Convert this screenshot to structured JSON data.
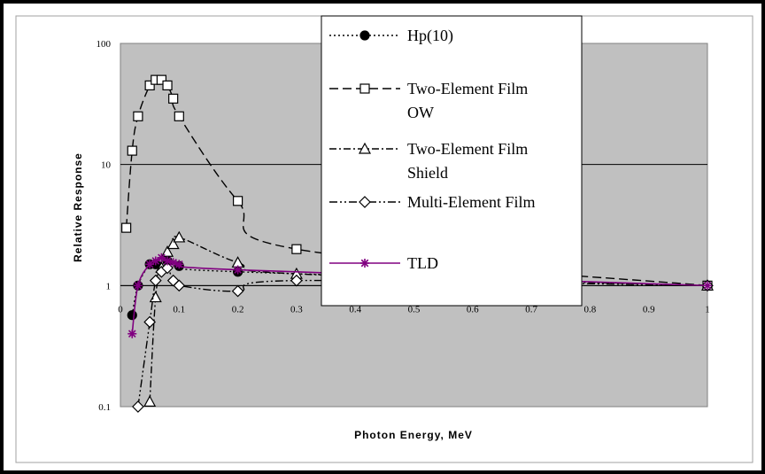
{
  "chart_data": {
    "type": "scatter",
    "xlabel": "Photon Energy, MeV",
    "ylabel": "Relative Response",
    "xlim": [
      0,
      1
    ],
    "ylim": [
      0.1,
      100
    ],
    "yscale": "log",
    "x_ticks": [
      "0",
      "0.1",
      "0.2",
      "0.3",
      "0.4",
      "0.5",
      "0.6",
      "0.7",
      "0.8",
      "0.9",
      "1"
    ],
    "y_ticks": [
      "0.1",
      "1",
      "10",
      "100"
    ],
    "grid": "horizontal major lines",
    "plot_background": "#c0c0c0",
    "legend_position": "top-center (overlapping plot)",
    "series": [
      {
        "name": "Hp(10)",
        "line_style": "dotted",
        "marker": "filled-circle",
        "color": "#000000",
        "x": [
          0.02,
          0.03,
          0.05,
          0.06,
          0.08,
          0.1,
          0.2,
          1.0
        ],
        "y": [
          0.57,
          1.0,
          1.5,
          1.5,
          1.6,
          1.45,
          1.3,
          1.0
        ]
      },
      {
        "name": "Two-Element Film OW",
        "line_style": "long-dash",
        "marker": "open-square",
        "color": "#000000",
        "x": [
          0.01,
          0.02,
          0.03,
          0.05,
          0.06,
          0.07,
          0.08,
          0.09,
          0.1,
          0.2,
          0.3,
          1.0
        ],
        "y": [
          3.0,
          13,
          25,
          45,
          50,
          50,
          45,
          35,
          25,
          5.0,
          2.0,
          1.0
        ]
      },
      {
        "name": "Two-Element Film Shield",
        "line_style": "dash-dot",
        "marker": "open-triangle",
        "color": "#000000",
        "x": [
          0.05,
          0.06,
          0.07,
          0.08,
          0.09,
          0.1,
          0.2,
          0.3,
          1.0
        ],
        "y": [
          0.11,
          0.8,
          1.4,
          1.9,
          2.2,
          2.5,
          1.55,
          1.25,
          1.0
        ]
      },
      {
        "name": "Multi-Element Film",
        "line_style": "dash-dot-dot",
        "marker": "open-diamond",
        "color": "#000000",
        "x": [
          0.03,
          0.05,
          0.06,
          0.07,
          0.08,
          0.09,
          0.1,
          0.2,
          0.3,
          1.0
        ],
        "y": [
          0.1,
          0.5,
          1.1,
          1.3,
          1.4,
          1.1,
          1.0,
          0.9,
          1.1,
          1.0
        ]
      },
      {
        "name": "TLD",
        "line_style": "solid",
        "marker": "asterisk",
        "color": "#800080",
        "x": [
          0.02,
          0.03,
          0.05,
          0.06,
          0.07,
          0.08,
          0.09,
          0.1,
          0.2,
          1.0
        ],
        "y": [
          0.4,
          1.0,
          1.5,
          1.6,
          1.7,
          1.6,
          1.55,
          1.5,
          1.35,
          1.0
        ]
      }
    ],
    "legend": {
      "entries": [
        {
          "line1": "Hp(10)",
          "line2": ""
        },
        {
          "line1": "Two-Element Film",
          "line2": "OW"
        },
        {
          "line1": "Two-Element Film",
          "line2": "Shield"
        },
        {
          "line1": "Multi-Element Film",
          "line2": ""
        },
        {
          "line1": "TLD",
          "line2": ""
        }
      ]
    }
  }
}
